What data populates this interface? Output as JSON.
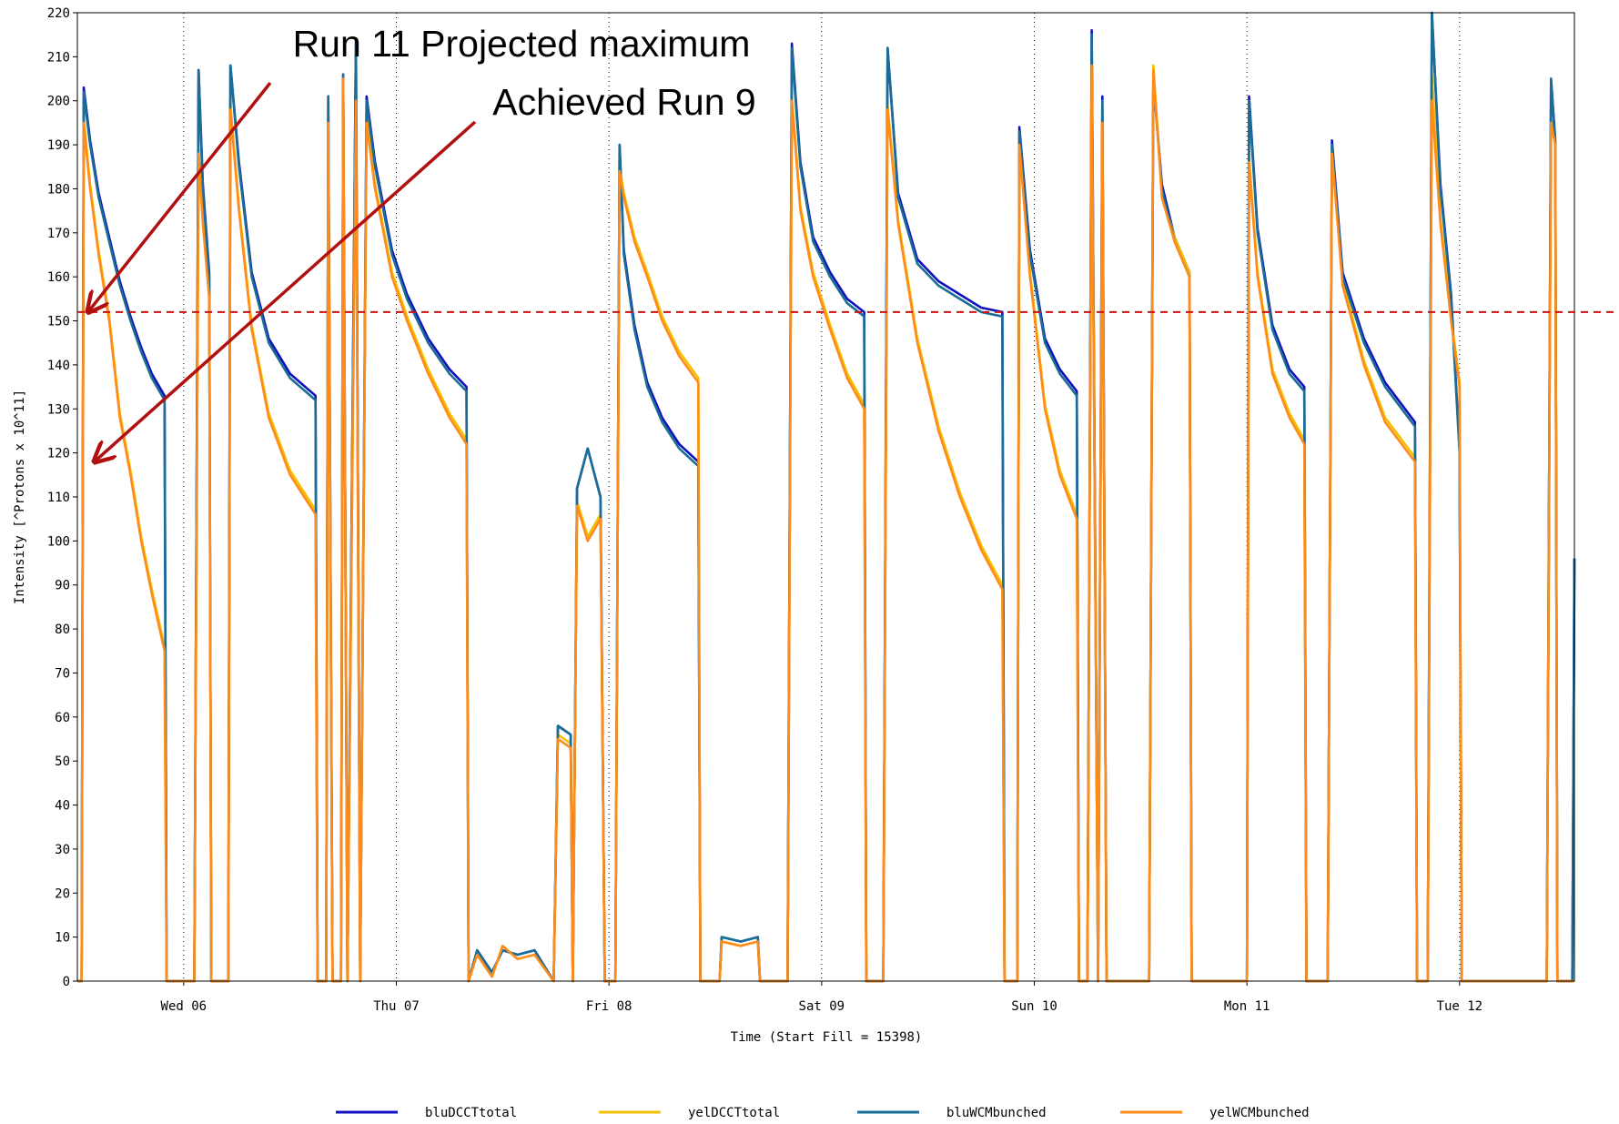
{
  "chart_data": {
    "type": "line",
    "xlabel": "Time (Start Fill = 15398)",
    "ylabel": "Intensity [^Protons x 10^11]",
    "xlim": [
      5.5,
      12.54
    ],
    "ylim": [
      0,
      220
    ],
    "xticks": [
      {
        "value": 6,
        "label": "Wed 06"
      },
      {
        "value": 7,
        "label": "Thu 07"
      },
      {
        "value": 8,
        "label": "Fri 08"
      },
      {
        "value": 9,
        "label": "Sat 09"
      },
      {
        "value": 10,
        "label": "Sun 10"
      },
      {
        "value": 11,
        "label": "Mon 11"
      },
      {
        "value": 12,
        "label": "Tue 12"
      }
    ],
    "yticks": [
      0,
      10,
      20,
      30,
      40,
      50,
      60,
      70,
      80,
      90,
      100,
      110,
      120,
      130,
      140,
      150,
      160,
      170,
      180,
      190,
      200,
      210,
      220
    ],
    "grid": "x",
    "reference_line": {
      "value": 152,
      "color": "#cc1111"
    },
    "annotations": [
      {
        "text": "Run 11 Projected maximum",
        "x": 5.55,
        "y": 152,
        "color": "#b01010"
      },
      {
        "text": "Achieved Run 9",
        "x": 5.58,
        "y": 118,
        "color": "#b01010"
      }
    ],
    "legend": "bottom",
    "x": [
      5.5,
      5.52,
      5.53,
      5.56,
      5.6,
      5.65,
      5.7,
      5.75,
      5.8,
      5.85,
      5.91,
      5.92,
      6.05,
      6.07,
      6.09,
      6.12,
      6.13,
      6.21,
      6.22,
      6.26,
      6.32,
      6.4,
      6.5,
      6.62,
      6.63,
      6.67,
      6.68,
      6.7,
      6.74,
      6.75,
      6.77,
      6.81,
      6.83,
      6.86,
      6.9,
      6.98,
      7.05,
      7.15,
      7.25,
      7.33,
      7.34,
      7.38,
      7.45,
      7.5,
      7.57,
      7.65,
      7.74,
      7.76,
      7.82,
      7.83,
      7.85,
      7.9,
      7.96,
      7.98,
      8.03,
      8.05,
      8.07,
      8.12,
      8.18,
      8.25,
      8.33,
      8.42,
      8.43,
      8.52,
      8.53,
      8.62,
      8.7,
      8.71,
      8.84,
      8.86,
      8.9,
      8.96,
      9.04,
      9.12,
      9.2,
      9.21,
      9.29,
      9.31,
      9.36,
      9.45,
      9.55,
      9.65,
      9.75,
      9.85,
      9.86,
      9.92,
      9.93,
      9.98,
      10.05,
      10.12,
      10.2,
      10.21,
      10.25,
      10.27,
      10.3,
      10.32,
      10.34,
      10.54,
      10.56,
      10.6,
      10.66,
      10.73,
      10.74,
      11.0,
      11.01,
      11.05,
      11.12,
      11.2,
      11.27,
      11.28,
      11.38,
      11.4,
      11.45,
      11.55,
      11.65,
      11.79,
      11.8,
      11.85,
      11.87,
      11.91,
      11.96,
      12.0,
      12.01,
      12.41,
      12.43,
      12.45,
      12.46,
      12.53,
      12.54
    ],
    "series": [
      {
        "name": "bluDCCTtotal",
        "color": "#1010c0",
        "values": [
          0,
          0,
          203,
          191,
          179,
          169,
          159,
          151,
          144,
          138,
          133,
          0,
          0,
          207,
          181,
          161,
          0,
          0,
          208,
          186,
          161,
          146,
          138,
          133,
          0,
          0,
          201,
          0,
          0,
          206,
          0,
          214,
          0,
          201,
          186,
          166,
          156,
          146,
          139,
          135,
          0,
          7,
          2,
          7,
          6,
          7,
          0,
          58,
          56,
          0,
          112,
          121,
          110,
          0,
          0,
          190,
          166,
          149,
          136,
          128,
          122,
          118,
          0,
          0,
          10,
          9,
          10,
          0,
          0,
          213,
          186,
          169,
          161,
          155,
          152,
          0,
          0,
          212,
          179,
          164,
          159,
          156,
          153,
          152,
          0,
          0,
          194,
          166,
          146,
          139,
          134,
          0,
          0,
          216,
          0,
          201,
          0,
          0,
          205,
          181,
          169,
          161,
          0,
          0,
          201,
          171,
          149,
          139,
          135,
          0,
          0,
          191,
          161,
          146,
          136,
          127,
          0,
          0,
          220,
          181,
          156,
          121,
          0,
          0,
          205,
          191,
          0,
          0,
          96
        ]
      },
      {
        "name": "yelDCCTtotal",
        "color": "#f2c200",
        "values": [
          0,
          0,
          196,
          181,
          166,
          151,
          129,
          116,
          101,
          89,
          76,
          0,
          0,
          189,
          173,
          156,
          0,
          0,
          199,
          176,
          149,
          129,
          116,
          107,
          0,
          0,
          196,
          0,
          0,
          206,
          0,
          201,
          0,
          196,
          181,
          161,
          151,
          139,
          129,
          123,
          0,
          6,
          1,
          8,
          5,
          6,
          0,
          56,
          54,
          0,
          109,
          101,
          106,
          0,
          0,
          185,
          179,
          169,
          161,
          151,
          143,
          137,
          0,
          0,
          9,
          8,
          9,
          0,
          0,
          201,
          176,
          161,
          149,
          138,
          131,
          0,
          0,
          199,
          173,
          146,
          126,
          111,
          99,
          90,
          0,
          0,
          191,
          161,
          131,
          116,
          106,
          0,
          0,
          209,
          0,
          196,
          0,
          0,
          208,
          179,
          169,
          161,
          0,
          0,
          187,
          161,
          139,
          129,
          123,
          0,
          0,
          189,
          159,
          141,
          128,
          119,
          0,
          0,
          206,
          173,
          151,
          136,
          0,
          0,
          196,
          191,
          0,
          0,
          0
        ]
      },
      {
        "name": "bluWCMbunched",
        "color": "#1a6e95",
        "values": [
          0,
          0,
          202,
          190,
          178,
          168,
          158,
          150,
          143,
          137,
          132,
          0,
          0,
          207,
          180,
          160,
          0,
          0,
          208,
          185,
          160,
          145,
          137,
          132,
          0,
          0,
          201,
          0,
          0,
          206,
          0,
          213,
          0,
          200,
          185,
          165,
          155,
          145,
          138,
          134,
          0,
          7,
          2,
          7,
          6,
          7,
          0,
          58,
          56,
          0,
          112,
          121,
          110,
          0,
          0,
          190,
          165,
          148,
          135,
          127,
          121,
          117,
          0,
          0,
          10,
          9,
          10,
          0,
          0,
          212,
          185,
          168,
          160,
          154,
          151,
          0,
          0,
          212,
          178,
          163,
          158,
          155,
          152,
          151,
          0,
          0,
          193,
          165,
          145,
          138,
          133,
          0,
          0,
          215,
          0,
          200,
          0,
          0,
          205,
          180,
          168,
          160,
          0,
          0,
          200,
          170,
          148,
          138,
          134,
          0,
          0,
          190,
          160,
          145,
          135,
          126,
          0,
          0,
          220,
          180,
          155,
          120,
          0,
          0,
          205,
          190,
          0,
          0,
          96
        ]
      },
      {
        "name": "yelWCMbunched",
        "color": "#ff8c1a",
        "values": [
          0,
          0,
          195,
          180,
          165,
          150,
          128,
          115,
          100,
          88,
          75,
          0,
          0,
          188,
          172,
          155,
          0,
          0,
          198,
          175,
          148,
          128,
          115,
          106,
          0,
          0,
          195,
          0,
          0,
          205,
          0,
          200,
          0,
          195,
          180,
          160,
          150,
          138,
          128,
          122,
          0,
          6,
          1,
          8,
          5,
          6,
          0,
          55,
          53,
          0,
          108,
          100,
          105,
          0,
          0,
          184,
          178,
          168,
          160,
          150,
          142,
          136,
          0,
          0,
          9,
          8,
          9,
          0,
          0,
          200,
          175,
          160,
          148,
          137,
          130,
          0,
          0,
          198,
          172,
          145,
          125,
          110,
          98,
          89,
          0,
          0,
          190,
          160,
          130,
          115,
          105,
          0,
          0,
          208,
          0,
          195,
          0,
          0,
          207,
          178,
          168,
          160,
          0,
          0,
          186,
          160,
          138,
          128,
          122,
          0,
          0,
          188,
          158,
          140,
          127,
          118,
          0,
          0,
          200,
          172,
          150,
          135,
          0,
          0,
          195,
          190,
          0,
          0,
          0
        ]
      }
    ]
  }
}
